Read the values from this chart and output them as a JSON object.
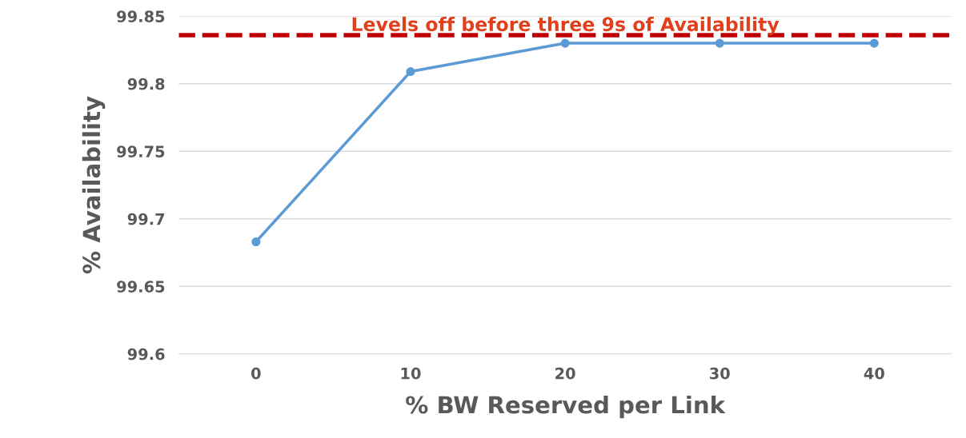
{
  "chart_data": {
    "type": "line",
    "xlabel": "% BW Reserved per Link",
    "ylabel": "% Availability",
    "categories": [
      "0",
      "10",
      "20",
      "30",
      "40"
    ],
    "series": [
      {
        "color": "#5b9bd5",
        "values": [
          99.683,
          99.809,
          99.83,
          99.83,
          99.83
        ]
      }
    ],
    "ylim": [
      99.6,
      99.85
    ],
    "yticks": [
      99.6,
      99.65,
      99.7,
      99.75,
      99.8,
      99.85
    ],
    "ref_lines": [
      {
        "axis": "y",
        "value": 99.836,
        "label": "Levels off before three 9s of Availability",
        "color": "#c00000",
        "line_style": "dashed"
      }
    ],
    "grid": "y",
    "marker": "circle",
    "line_style": "solid",
    "legend": false
  }
}
